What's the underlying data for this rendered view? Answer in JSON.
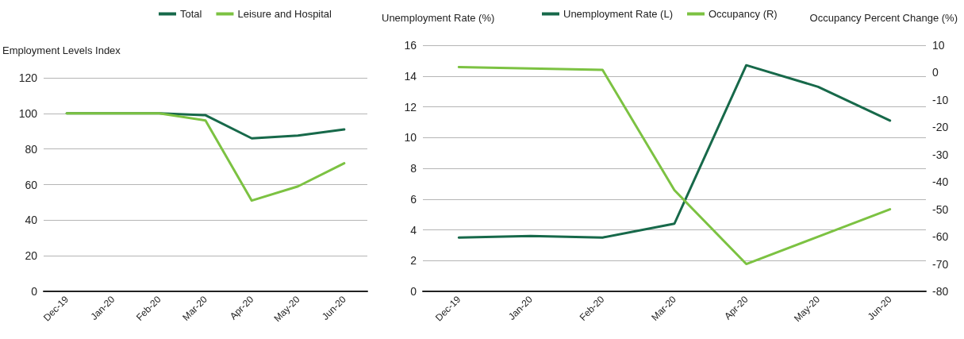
{
  "chart_data": [
    {
      "type": "line",
      "ylabel": "Employment Levels Index",
      "categories": [
        "Dec-19",
        "Jan-20",
        "Feb-20",
        "Mar-20",
        "Apr-20",
        "May-20",
        "Jun-20"
      ],
      "ylim": [
        0,
        120
      ],
      "yticks": [
        0,
        20,
        40,
        60,
        80,
        100,
        120
      ],
      "grid": "y",
      "legend": "top",
      "marker": "none",
      "line_style": "solid",
      "series": [
        {
          "name": "Total",
          "color": "#17694a",
          "values": [
            100,
            100,
            100,
            99,
            86,
            87.5,
            91
          ]
        },
        {
          "name": "Leisure and Hospital",
          "color": "#7cc242",
          "values": [
            100,
            100,
            100,
            96,
            51,
            59,
            72
          ]
        }
      ]
    },
    {
      "type": "line",
      "ylabel": "Unemployment Rate (%)",
      "y2label": "Occupancy Percent Change (%)",
      "categories": [
        "Dec-19",
        "Jan-20",
        "Feb-20",
        "Mar-20",
        "Apr-20",
        "May-20",
        "Jun-20"
      ],
      "ylim": [
        0,
        16
      ],
      "yticks": [
        0,
        2,
        4,
        6,
        8,
        10,
        12,
        14,
        16
      ],
      "y2lim": [
        -80,
        10
      ],
      "y2ticks": [
        -80,
        -70,
        -60,
        -50,
        -40,
        -30,
        -20,
        -10,
        0,
        10
      ],
      "grid": "y",
      "legend": "top",
      "marker": "none",
      "line_style": "solid",
      "series": [
        {
          "name": "Unemployment Rate (L)",
          "color": "#17694a",
          "values": [
            3.5,
            3.6,
            3.5,
            4.4,
            14.7,
            13.3,
            11.1
          ]
        },
        {
          "name": "Occupancy (R)",
          "color": "#7cc242",
          "axis": "y2",
          "values": [
            2,
            1.5,
            1,
            -43,
            -70,
            -60,
            -50
          ]
        }
      ]
    }
  ]
}
